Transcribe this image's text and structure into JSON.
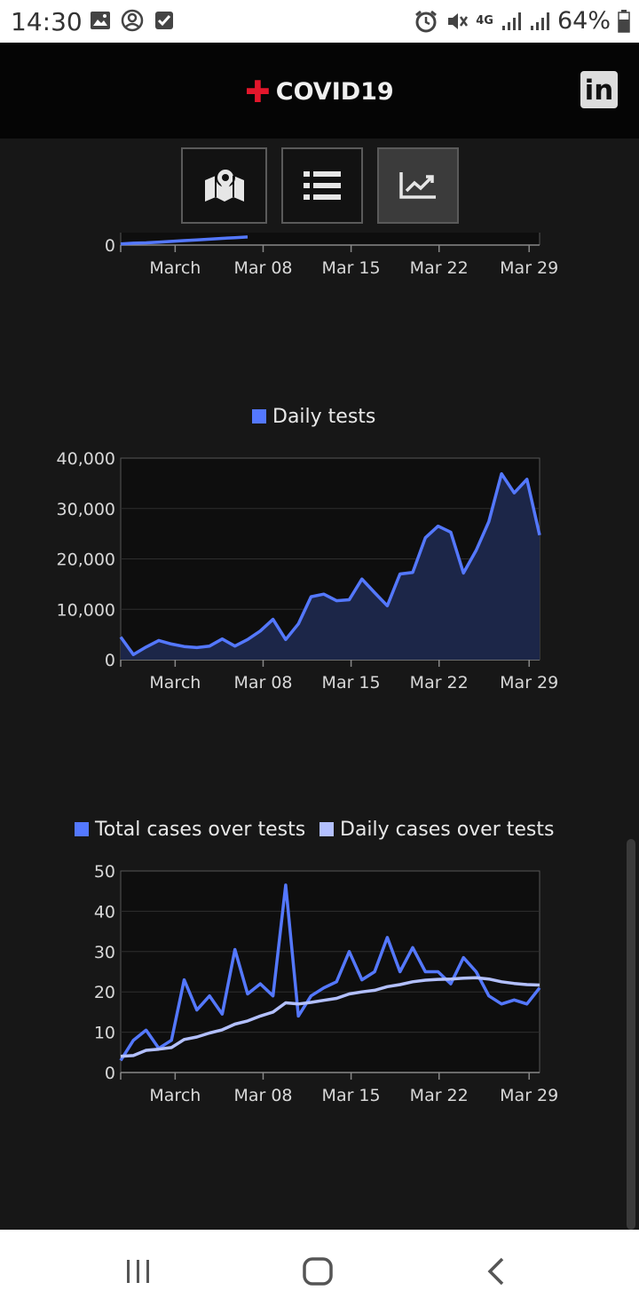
{
  "status_bar": {
    "time": "14:30",
    "network": "4G",
    "battery": "64%",
    "left_icons": [
      "image-icon",
      "account-circle-icon",
      "checkbox-icon"
    ],
    "right_icons": [
      "alarm-icon",
      "mute-icon",
      "signal-icon",
      "signal-icon",
      "battery-icon"
    ]
  },
  "header": {
    "title": "COVID19",
    "linkedin_label": "in"
  },
  "nav": {
    "buttons": [
      {
        "icon": "map-icon",
        "active": false
      },
      {
        "icon": "list-icon",
        "active": false
      },
      {
        "icon": "chart-icon",
        "active": true
      }
    ]
  },
  "colors": {
    "accent": "#e4162b",
    "series_primary": "#5478ff",
    "series_secondary": "#b3c0ff",
    "background": "#171717",
    "plot_background": "#0e0e0e"
  },
  "chart_data": [
    {
      "type": "line",
      "partially_visible": true,
      "x_tick_labels": [
        "March",
        "Mar 08",
        "Mar 15",
        "Mar 22",
        "Mar 29"
      ],
      "y_tick_labels": [
        "0"
      ],
      "series": [
        {
          "values": [
            0.3,
            0.5,
            0.6,
            0.8,
            1.0,
            1.2,
            1.4,
            1.6,
            1.8,
            2.0,
            2.2
          ]
        }
      ]
    },
    {
      "type": "area",
      "legend": [
        {
          "name": "Daily tests",
          "color": "#5478ff"
        }
      ],
      "x_tick_labels": [
        "March",
        "Mar 08",
        "Mar 15",
        "Mar 22",
        "Mar 29"
      ],
      "y_tick_labels": [
        "0",
        "10,000",
        "20,000",
        "30,000",
        "40,000"
      ],
      "ylim": [
        0,
        40000
      ],
      "grid": true,
      "series": [
        {
          "name": "Daily tests",
          "values": [
            4500,
            1000,
            2500,
            3800,
            3100,
            2600,
            2400,
            2700,
            4100,
            2700,
            4000,
            5700,
            8000,
            4000,
            7100,
            12500,
            13000,
            11700,
            11900,
            16000,
            13300,
            10700,
            17000,
            17300,
            24200,
            26500,
            25300,
            17200,
            21700,
            27400,
            36900,
            33100,
            35800,
            24700
          ]
        }
      ]
    },
    {
      "type": "line",
      "legend": [
        {
          "name": "Total cases over tests",
          "color": "#5478ff"
        },
        {
          "name": "Daily cases over tests",
          "color": "#b3c0ff"
        }
      ],
      "x_tick_labels": [
        "March",
        "Mar 08",
        "Mar 15",
        "Mar 22",
        "Mar 29"
      ],
      "y_tick_labels": [
        "0",
        "10",
        "20",
        "30",
        "40",
        "50"
      ],
      "ylim": [
        0,
        50
      ],
      "grid": true,
      "series": [
        {
          "name": "Total cases over tests",
          "values": [
            3,
            8,
            10.5,
            6,
            8,
            23,
            15.5,
            19,
            14.5,
            30.5,
            19.5,
            22,
            19,
            46.5,
            14,
            19,
            21,
            22.5,
            30,
            23,
            25,
            33.5,
            25,
            31,
            25,
            25,
            22,
            28.5,
            25,
            19,
            17,
            18,
            17,
            21
          ]
        },
        {
          "name": "Daily cases over tests",
          "values": [
            4,
            4.2,
            5.5,
            5.8,
            6.2,
            8.2,
            8.8,
            9.8,
            10.6,
            12,
            12.8,
            14,
            15,
            17.3,
            17,
            17.4,
            17.9,
            18.4,
            19.5,
            20,
            20.4,
            21.3,
            21.8,
            22.5,
            22.9,
            23.1,
            23.2,
            23.4,
            23.5,
            23.2,
            22.5,
            22.1,
            21.8,
            21.7
          ]
        }
      ]
    }
  ]
}
